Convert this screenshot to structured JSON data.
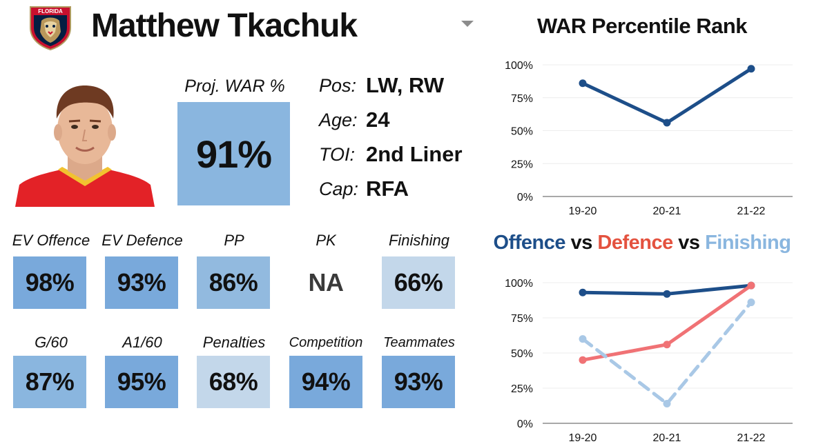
{
  "player": {
    "name": "Matthew Tkachuk",
    "team_logo_text": "FLORIDA",
    "photo_alt": "Matthew Tkachuk headshot"
  },
  "proj_war": {
    "label": "Proj. WAR %",
    "value": "91%",
    "fill": "#8ab6df"
  },
  "info": [
    {
      "label": "Pos:",
      "value": "LW, RW"
    },
    {
      "label": "Age:",
      "value": "24"
    },
    {
      "label": "TOI:",
      "value": "2nd Liner"
    },
    {
      "label": "Cap:",
      "value": "RFA"
    }
  ],
  "stats": [
    {
      "label": "EV Offence",
      "value": "98%",
      "fill": "#79a9db"
    },
    {
      "label": "EV Defence",
      "value": "93%",
      "fill": "#79a9db"
    },
    {
      "label": "PP",
      "value": "86%",
      "fill": "#92badf"
    },
    {
      "label": "PK",
      "value": "NA",
      "fill": "#ffffff"
    },
    {
      "label": "Finishing",
      "value": "66%",
      "fill": "#c3d7ea"
    },
    {
      "label": "G/60",
      "value": "87%",
      "fill": "#8ab6df"
    },
    {
      "label": "A1/60",
      "value": "95%",
      "fill": "#79a9db"
    },
    {
      "label": "Penalties",
      "value": "68%",
      "fill": "#c3d7ea"
    },
    {
      "label": "Competition",
      "value": "94%",
      "fill": "#79a9db"
    },
    {
      "label": "Teammates",
      "value": "93%",
      "fill": "#79a9db"
    }
  ],
  "chart_data": [
    {
      "type": "line",
      "title": "WAR Percentile Rank",
      "categories": [
        "19-20",
        "20-21",
        "21-22"
      ],
      "yticks": [
        "0%",
        "25%",
        "50%",
        "75%",
        "100%"
      ],
      "ylim": [
        0,
        100
      ],
      "grid": true,
      "series": [
        {
          "values": [
            86,
            56,
            97
          ],
          "color": "#1d4e89",
          "dashed": false
        }
      ]
    },
    {
      "type": "line",
      "title_parts": [
        {
          "text": "Offence",
          "color": "#1d4e89"
        },
        {
          "text": " vs ",
          "color": "#111111"
        },
        {
          "text": "Defence",
          "color": "#e4523f"
        },
        {
          "text": " vs ",
          "color": "#111111"
        },
        {
          "text": "Finishing",
          "color": "#8ab6df"
        }
      ],
      "categories": [
        "19-20",
        "20-21",
        "21-22"
      ],
      "yticks": [
        "0%",
        "25%",
        "50%",
        "75%",
        "100%"
      ],
      "ylim": [
        0,
        100
      ],
      "grid": true,
      "series": [
        {
          "name": "Offence",
          "values": [
            93,
            92,
            98
          ],
          "color": "#1d4e89",
          "dashed": false
        },
        {
          "name": "Defence",
          "values": [
            45,
            56,
            98
          ],
          "color": "#f07275",
          "dashed": false
        },
        {
          "name": "Finishing",
          "values": [
            60,
            14,
            86
          ],
          "color": "#a9c8e6",
          "dashed": true
        }
      ]
    }
  ]
}
